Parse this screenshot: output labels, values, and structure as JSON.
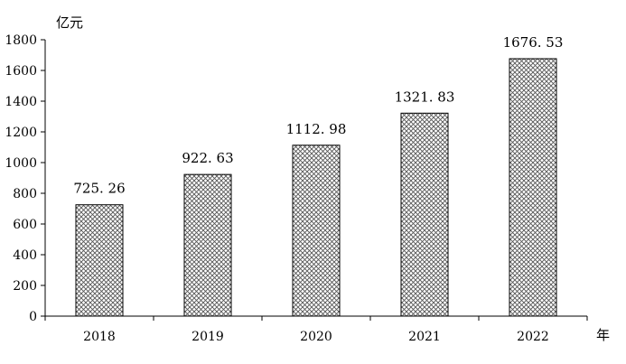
{
  "chart_data": {
    "type": "bar",
    "categories": [
      "2018",
      "2019",
      "2020",
      "2021",
      "2022"
    ],
    "values": [
      725.26,
      922.63,
      1112.98,
      1321.83,
      1676.53
    ],
    "value_labels": [
      "725. 26",
      "922. 63",
      "1112. 98",
      "1321. 83",
      "1676. 53"
    ],
    "title": "",
    "ylabel": "亿元",
    "xlabel": "年",
    "ylim": [
      0,
      1800
    ],
    "y_ticks": [
      0,
      200,
      400,
      600,
      800,
      1000,
      1200,
      1400,
      1600,
      1800
    ],
    "grid": false,
    "legend": "none",
    "bar_pattern": "crosshatch",
    "colors": {
      "bar_stroke": "#000000",
      "pattern_line": "#555555",
      "background": "#ffffff"
    }
  }
}
